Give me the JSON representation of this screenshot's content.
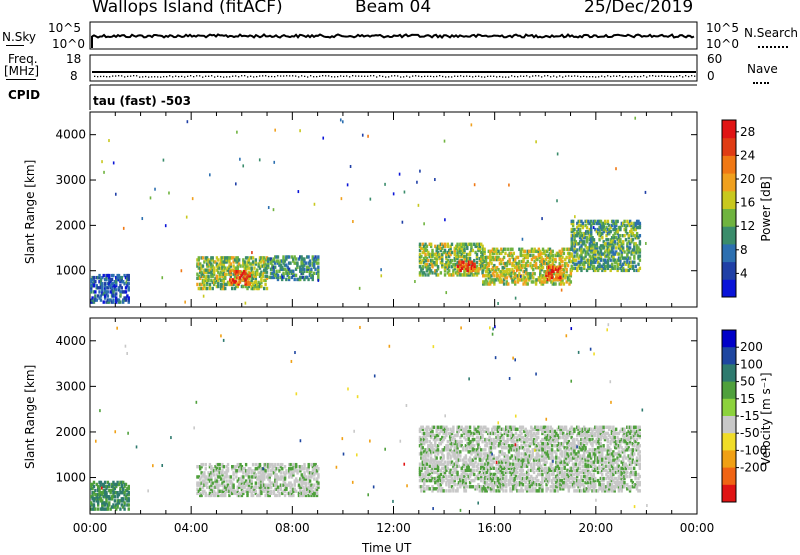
{
  "header": {
    "station": "Wallops Island (fitACF)",
    "beam": "Beam 04",
    "date": "25/Dec/2019"
  },
  "strips": {
    "nsky": {
      "label": "N.Sky",
      "ticks": [
        "10^5",
        "10^0"
      ]
    },
    "nsearch": {
      "label": "N.Search",
      "ticks": [
        "10^5",
        "10^0"
      ]
    },
    "freq": {
      "label": "Freq.",
      "unit": "[MHz]",
      "ticks": [
        "18",
        "8"
      ]
    },
    "nave": {
      "label": "Nave",
      "ticks": [
        "60",
        "0"
      ]
    },
    "cpid": {
      "label": "CPID",
      "value": "tau (fast) -503"
    }
  },
  "colors": {
    "power": [
      "#0a14d8",
      "#1f3fa6",
      "#2c6fb0",
      "#3a8c6b",
      "#6fb33f",
      "#c8c81e",
      "#f0a01e",
      "#f07814",
      "#e03c14",
      "#e01414"
    ],
    "velocity": [
      "#0000c8",
      "#1e46a0",
      "#2e7a6e",
      "#4fa03c",
      "#8cd23c",
      "#c8c8c8",
      "#f0dc28",
      "#f0a014",
      "#f06414",
      "#e01414"
    ]
  },
  "chart_data": [
    {
      "type": "heatmap",
      "ylabel": "Slant Range [km]",
      "xlabel": "",
      "y_ticks": [
        "1000",
        "2000",
        "3000",
        "4000"
      ],
      "ylim": [
        200,
        4500
      ],
      "xlim": [
        0,
        24
      ],
      "colorbar": {
        "label": "Power [dB]",
        "ticks": [
          "4",
          "8",
          "12",
          "16",
          "20",
          "24",
          "28"
        ],
        "range": [
          0,
          30
        ]
      },
      "echo_regions": [
        {
          "t_start": 0.0,
          "t_end": 1.5,
          "range_min": 300,
          "range_max": 900,
          "power_db": 6
        },
        {
          "t_start": 4.2,
          "t_end": 7.0,
          "range_min": 600,
          "range_max": 1300,
          "power_db": 14
        },
        {
          "t_start": 5.5,
          "t_end": 6.3,
          "range_min": 700,
          "range_max": 1000,
          "power_db": 24
        },
        {
          "t_start": 7.0,
          "t_end": 9.0,
          "range_min": 800,
          "range_max": 1300,
          "power_db": 10
        },
        {
          "t_start": 13.0,
          "t_end": 15.5,
          "range_min": 900,
          "range_max": 1600,
          "power_db": 14
        },
        {
          "t_start": 14.5,
          "t_end": 15.2,
          "range_min": 1000,
          "range_max": 1200,
          "power_db": 24
        },
        {
          "t_start": 15.5,
          "t_end": 19.0,
          "range_min": 700,
          "range_max": 1500,
          "power_db": 16
        },
        {
          "t_start": 18.0,
          "t_end": 18.6,
          "range_min": 800,
          "range_max": 1100,
          "power_db": 24
        },
        {
          "t_start": 19.0,
          "t_end": 21.7,
          "range_min": 1000,
          "range_max": 2100,
          "power_db": 12
        }
      ]
    },
    {
      "type": "heatmap",
      "ylabel": "Slant Range [km]",
      "xlabel": "Time UT",
      "x_ticks": [
        "00:00",
        "04:00",
        "08:00",
        "12:00",
        "16:00",
        "20:00",
        "00:00"
      ],
      "y_ticks": [
        "1000",
        "2000",
        "3000",
        "4000"
      ],
      "ylim": [
        200,
        4500
      ],
      "xlim": [
        0,
        24
      ],
      "colorbar": {
        "label": "Velocity [m s⁻¹]",
        "ticks": [
          "200",
          "100",
          "50",
          "15",
          "-15",
          "-50",
          "-100",
          "-200"
        ],
        "range": [
          -250,
          250
        ]
      },
      "echo_regions": [
        {
          "t_start": 0.0,
          "t_end": 1.5,
          "range_min": 300,
          "range_max": 900,
          "velocity": 60
        },
        {
          "t_start": 4.2,
          "t_end": 9.0,
          "range_min": 600,
          "range_max": 1300,
          "velocity": 0
        },
        {
          "t_start": 13.0,
          "t_end": 21.7,
          "range_min": 700,
          "range_max": 2100,
          "velocity": 0
        }
      ]
    }
  ]
}
